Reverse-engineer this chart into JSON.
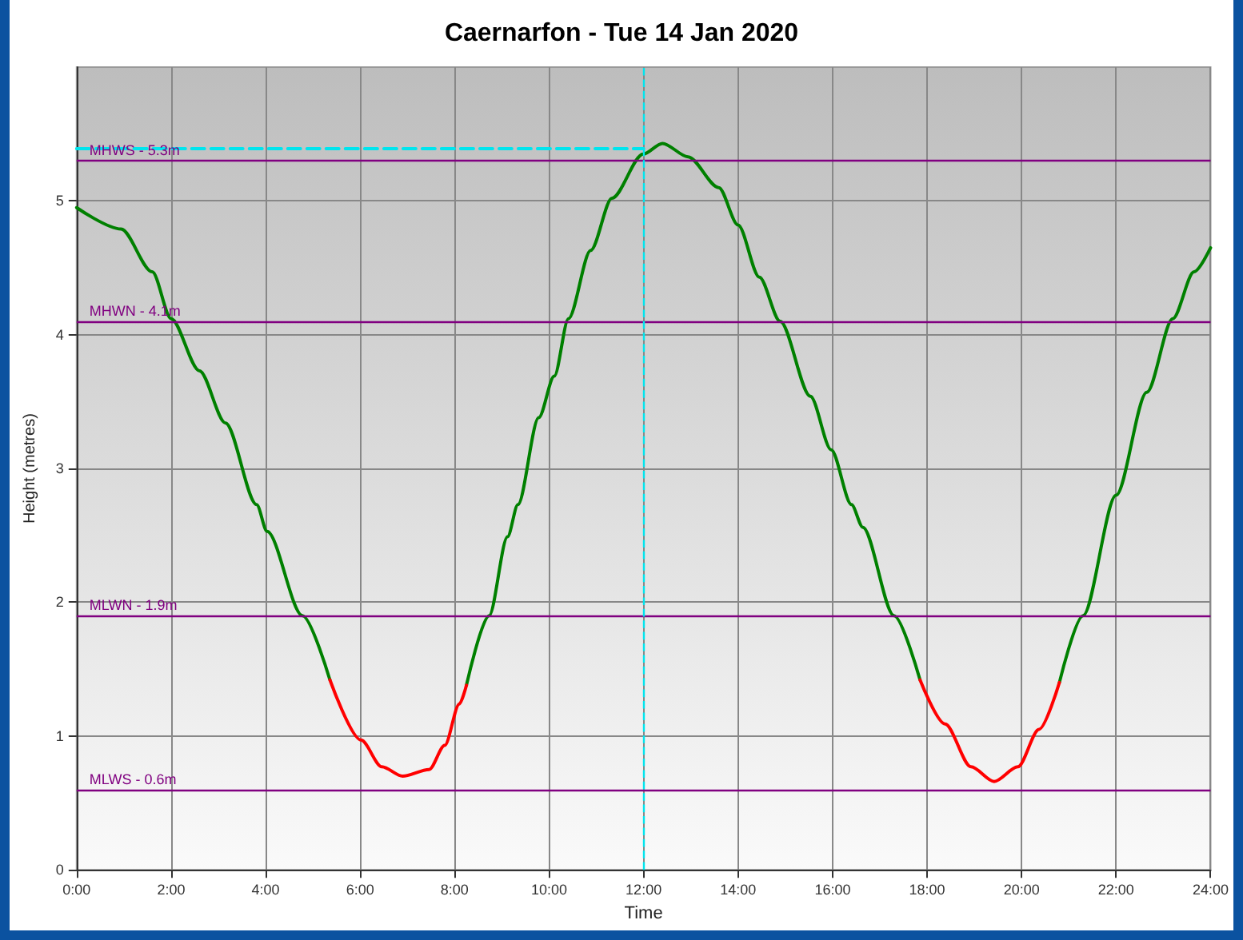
{
  "chart_data": {
    "type": "line",
    "title": "Caernarfon - Tue 14 Jan 2020",
    "xlabel": "Time",
    "ylabel": "Height (metres)",
    "x": [
      0,
      0.94,
      1.6,
      2,
      2.6,
      3.15,
      3.81,
      4.03,
      4.78,
      5.36,
      6.02,
      6.46,
      6.9,
      7.46,
      7.79,
      8.1,
      8.25,
      8.73,
      9.12,
      9.34,
      9.78,
      10.11,
      10.41,
      10.88,
      11.33,
      11.99,
      12.4,
      12.94,
      13.59,
      14,
      14.45,
      14.89,
      15.53,
      15.97,
      16.4,
      16.64,
      17.3,
      17.85,
      18.38,
      18.93,
      19.42,
      19.92,
      20.37,
      20.8,
      21.3,
      22,
      22.65,
      23.2,
      23.65,
      24
    ],
    "series": [
      {
        "color": "#008000",
        "values": [
          4.95,
          4.79,
          4.47,
          4.12,
          3.73,
          3.34,
          2.73,
          2.53,
          1.9,
          1.42,
          null,
          null,
          null,
          null,
          null,
          null,
          1.38,
          1.9,
          2.49,
          2.73,
          3.38,
          3.69,
          4.12,
          4.63,
          5.02,
          5.35,
          5.43,
          5.33,
          5.1,
          4.82,
          4.43,
          4.1,
          3.54,
          3.14,
          2.73,
          2.56,
          1.9,
          1.42,
          null,
          null,
          null,
          null,
          null,
          1.4,
          1.9,
          2.8,
          3.57,
          4.12,
          4.47,
          4.65
        ]
      },
      {
        "color": "#ff0000",
        "values": [
          null,
          null,
          null,
          null,
          null,
          null,
          null,
          null,
          null,
          1.42,
          0.97,
          0.77,
          0.7,
          0.75,
          0.93,
          1.24,
          1.38,
          null,
          null,
          null,
          null,
          null,
          null,
          null,
          null,
          null,
          null,
          null,
          null,
          null,
          null,
          null,
          null,
          null,
          null,
          null,
          null,
          1.42,
          1.09,
          0.77,
          0.66,
          0.77,
          1.05,
          1.4,
          null,
          null,
          null,
          null,
          null,
          null
        ]
      },
      {
        "color": "#00e5ee",
        "line_style": "dashed",
        "x": [
          0,
          12
        ],
        "values": [
          5.39,
          5.39
        ]
      }
    ],
    "xlim": [
      0,
      24
    ],
    "xticks": [
      {
        "value": 0,
        "label": "0:00"
      },
      {
        "value": 2,
        "label": "2:00"
      },
      {
        "value": 4,
        "label": "4:00"
      },
      {
        "value": 6,
        "label": "6:00"
      },
      {
        "value": 8,
        "label": "8:00"
      },
      {
        "value": 10,
        "label": "10:00"
      },
      {
        "value": 12,
        "label": "12:00"
      },
      {
        "value": 14,
        "label": "14:00"
      },
      {
        "value": 16,
        "label": "16:00"
      },
      {
        "value": 18,
        "label": "18:00"
      },
      {
        "value": 20,
        "label": "20:00"
      },
      {
        "value": 22,
        "label": "22:00"
      },
      {
        "value": 24,
        "label": "24:00"
      }
    ],
    "ylim": [
      0,
      6
    ],
    "yticks": [
      0,
      1,
      2,
      3,
      4,
      5
    ],
    "ref_lines": [
      {
        "axis": "y",
        "value": 5.3,
        "label": "MHWS - 5.3m",
        "color": "#800080"
      },
      {
        "axis": "y",
        "value": 4.1,
        "label": "MHWN - 4.1m",
        "color": "#800080"
      },
      {
        "axis": "y",
        "value": 1.9,
        "label": "MLWN - 1.9m",
        "color": "#800080"
      },
      {
        "axis": "y",
        "value": 0.6,
        "label": "MLWS - 0.6m",
        "color": "#800080"
      },
      {
        "axis": "x",
        "value": 12,
        "color": "#00e5ee",
        "line_style": "dashed"
      }
    ],
    "grid": true,
    "marker": "none",
    "line_style": "solid"
  }
}
